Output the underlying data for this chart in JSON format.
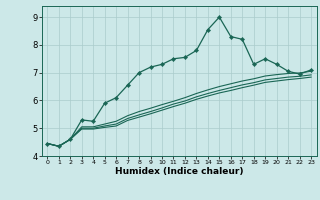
{
  "title": "",
  "xlabel": "Humidex (Indice chaleur)",
  "bg_color": "#cce8e8",
  "grid_color": "#aacccc",
  "line_color": "#1a6655",
  "xlim": [
    -0.5,
    23.5
  ],
  "ylim": [
    4.0,
    9.4
  ],
  "xticks": [
    0,
    1,
    2,
    3,
    4,
    5,
    6,
    7,
    8,
    9,
    10,
    11,
    12,
    13,
    14,
    15,
    16,
    17,
    18,
    19,
    20,
    21,
    22,
    23
  ],
  "yticks": [
    4,
    5,
    6,
    7,
    8,
    9
  ],
  "line1_x": [
    0,
    1,
    2,
    3,
    4,
    5,
    6,
    7,
    8,
    9,
    10,
    11,
    12,
    13,
    14,
    15,
    16,
    17,
    18,
    19,
    20,
    21,
    22,
    23
  ],
  "line1_y": [
    4.45,
    4.35,
    4.6,
    5.3,
    5.25,
    5.9,
    6.1,
    6.55,
    7.0,
    7.2,
    7.3,
    7.5,
    7.55,
    7.8,
    8.55,
    9.0,
    8.3,
    8.2,
    7.3,
    7.5,
    7.3,
    7.05,
    6.95,
    7.1
  ],
  "line2_x": [
    0,
    1,
    2,
    3,
    4,
    5,
    6,
    7,
    8,
    9,
    10,
    11,
    12,
    13,
    14,
    15,
    16,
    17,
    18,
    19,
    20,
    21,
    22,
    23
  ],
  "line2_y": [
    4.45,
    4.35,
    4.6,
    5.05,
    5.05,
    5.15,
    5.25,
    5.45,
    5.6,
    5.72,
    5.85,
    5.97,
    6.1,
    6.25,
    6.38,
    6.5,
    6.6,
    6.7,
    6.78,
    6.88,
    6.93,
    6.97,
    6.99,
    7.05
  ],
  "line3_x": [
    0,
    1,
    2,
    3,
    4,
    5,
    6,
    7,
    8,
    9,
    10,
    11,
    12,
    13,
    14,
    15,
    16,
    17,
    18,
    19,
    20,
    21,
    22,
    23
  ],
  "line3_y": [
    4.45,
    4.35,
    4.6,
    5.0,
    5.0,
    5.08,
    5.15,
    5.35,
    5.48,
    5.6,
    5.73,
    5.87,
    5.98,
    6.13,
    6.25,
    6.36,
    6.46,
    6.56,
    6.64,
    6.74,
    6.79,
    6.84,
    6.87,
    6.92
  ],
  "line4_x": [
    0,
    1,
    2,
    3,
    4,
    5,
    6,
    7,
    8,
    9,
    10,
    11,
    12,
    13,
    14,
    15,
    16,
    17,
    18,
    19,
    20,
    21,
    22,
    23
  ],
  "line4_y": [
    4.45,
    4.35,
    4.6,
    4.97,
    4.97,
    5.03,
    5.08,
    5.28,
    5.4,
    5.52,
    5.65,
    5.78,
    5.9,
    6.04,
    6.16,
    6.27,
    6.36,
    6.46,
    6.55,
    6.65,
    6.7,
    6.75,
    6.79,
    6.84
  ]
}
